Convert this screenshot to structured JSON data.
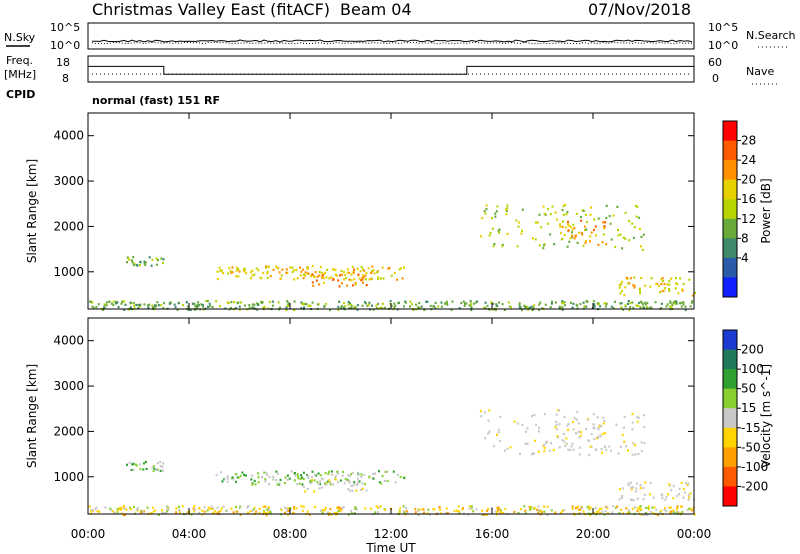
{
  "header": {
    "title": "Christmas Valley East (fitACF)",
    "beam": "Beam 04",
    "date": "07/Nov/2018"
  },
  "panels": {
    "nsky": {
      "label": "N.Sky",
      "ticks": [
        "10^5",
        "10^0"
      ]
    },
    "nsearch": {
      "label": "N.Search",
      "ticks": [
        "10^5",
        "10^0"
      ]
    },
    "freq": {
      "label_line1": "Freq.",
      "label_line2": "[MHz]",
      "ticks": [
        "18",
        "8"
      ]
    },
    "nave": {
      "label": "Nave",
      "ticks": [
        "60",
        "0"
      ]
    },
    "cpid": {
      "label": "CPID",
      "value": "normal (fast) 151 RF"
    }
  },
  "power_colorbar": {
    "label": "Power [dB]",
    "ticks": [
      "28",
      "24",
      "20",
      "16",
      "12",
      "8",
      "4"
    ],
    "colors": [
      "#ff0000",
      "#ff5a00",
      "#ff9000",
      "#e6d000",
      "#b7d400",
      "#6aaa3a",
      "#3e8a6a",
      "#2b5aa8",
      "#1020ff"
    ]
  },
  "velocity_colorbar": {
    "label": "Velocity [m s^-1]",
    "ticks": [
      "200",
      "100",
      "50",
      "15",
      "-15",
      "-50",
      "-100",
      "-200"
    ],
    "colors": [
      "#1a3ad0",
      "#1f7a5a",
      "#30a030",
      "#88d030",
      "#c8c8c8",
      "#ffd400",
      "#ffa000",
      "#ff5a00",
      "#ff0000"
    ]
  },
  "chart_data": {
    "type": "heatmap",
    "xlabel": "Time UT",
    "ylabel": "Slant Range [km]",
    "xticks": [
      "00:00",
      "04:00",
      "08:00",
      "12:00",
      "16:00",
      "20:00",
      "00:00"
    ],
    "xlim_hours": [
      0,
      24
    ],
    "yticks": [
      "1000",
      "2000",
      "3000",
      "4000"
    ],
    "ylim_km": [
      180,
      4500
    ],
    "frequency_mhz": [
      {
        "start_h": 0,
        "end_h": 3,
        "value": 14
      },
      {
        "start_h": 3,
        "end_h": 15,
        "value": 11
      },
      {
        "start_h": 15,
        "end_h": 24,
        "value": 14
      }
    ],
    "power_regions_approx": [
      {
        "start_h": 0,
        "end_h": 24,
        "min_km": 180,
        "max_km": 380,
        "db": 8
      },
      {
        "start_h": 1.5,
        "end_h": 3,
        "min_km": 1150,
        "max_km": 1350,
        "db": 8
      },
      {
        "start_h": 5,
        "end_h": 12.5,
        "min_km": 850,
        "max_km": 1150,
        "db": 16
      },
      {
        "start_h": 8.5,
        "end_h": 11,
        "min_km": 700,
        "max_km": 1100,
        "db": 20
      },
      {
        "start_h": 15.5,
        "end_h": 22,
        "min_km": 1500,
        "max_km": 2500,
        "db": 12
      },
      {
        "start_h": 18.5,
        "end_h": 20.5,
        "min_km": 1600,
        "max_km": 2200,
        "db": 20
      },
      {
        "start_h": 21,
        "end_h": 24,
        "min_km": 500,
        "max_km": 900,
        "db": 16
      }
    ]
  }
}
